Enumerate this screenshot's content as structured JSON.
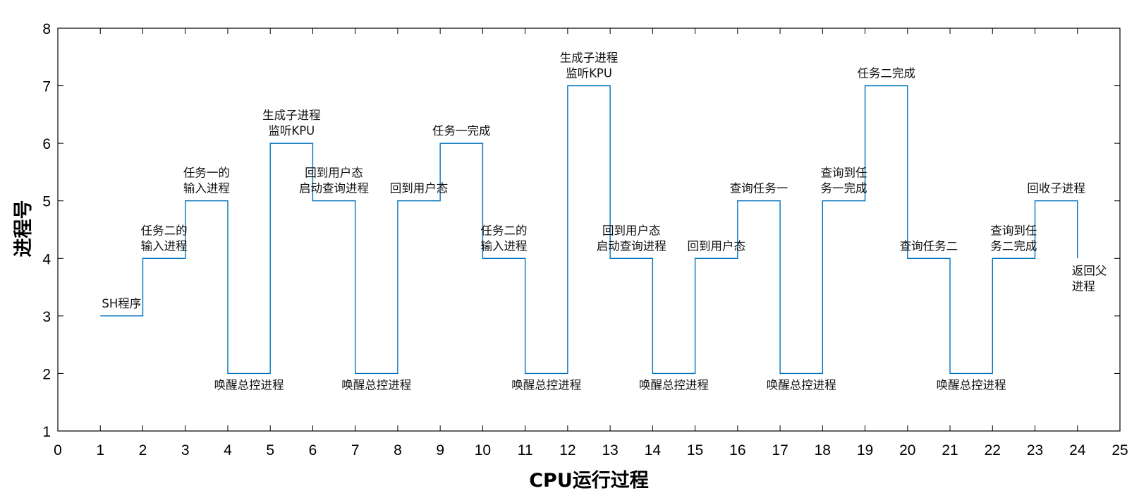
{
  "chart_data": {
    "type": "line",
    "step": true,
    "title": "",
    "xlabel": "CPU运行过程",
    "ylabel": "进程号",
    "xlim": [
      0,
      25
    ],
    "ylim": [
      1,
      8
    ],
    "xticks": [
      "0",
      "1",
      "2",
      "3",
      "4",
      "5",
      "6",
      "7",
      "8",
      "9",
      "10",
      "11",
      "12",
      "13",
      "14",
      "15",
      "16",
      "17",
      "18",
      "19",
      "20",
      "21",
      "22",
      "23",
      "24",
      "25"
    ],
    "yticks": [
      "1",
      "2",
      "3",
      "4",
      "5",
      "6",
      "7",
      "8"
    ],
    "grid": false,
    "line_color": "#0072BD",
    "series": [
      {
        "name": "process",
        "x": [
          1,
          2,
          3,
          4,
          5,
          6,
          7,
          8,
          9,
          10,
          11,
          12,
          13,
          14,
          15,
          16,
          17,
          18,
          19,
          20,
          21,
          22,
          23,
          24
        ],
        "values": [
          3,
          4,
          5,
          2,
          6,
          5,
          2,
          5,
          6,
          4,
          2,
          7,
          4,
          2,
          4,
          5,
          2,
          5,
          7,
          4,
          2,
          4,
          5,
          4
        ]
      }
    ],
    "annotations": [
      {
        "x": 1.5,
        "y": 3,
        "lines": [
          "SH程序"
        ]
      },
      {
        "x": 2.5,
        "y": 4,
        "lines": [
          "任务二的",
          "输入进程"
        ]
      },
      {
        "x": 3.5,
        "y": 5,
        "lines": [
          "任务一的",
          "输入进程"
        ]
      },
      {
        "x": 4.5,
        "y": 2,
        "lines": [
          "唤醒总控进程"
        ]
      },
      {
        "x": 5.5,
        "y": 6,
        "lines": [
          "生成子进程",
          "监听KPU"
        ]
      },
      {
        "x": 6.5,
        "y": 5,
        "lines": [
          "回到用户态",
          "启动查询进程"
        ]
      },
      {
        "x": 7.5,
        "y": 2,
        "lines": [
          "唤醒总控进程"
        ]
      },
      {
        "x": 8.5,
        "y": 5,
        "lines": [
          "回到用户态"
        ]
      },
      {
        "x": 9.5,
        "y": 6,
        "lines": [
          "任务一完成"
        ]
      },
      {
        "x": 10.5,
        "y": 4,
        "lines": [
          "任务二的",
          "输入进程"
        ]
      },
      {
        "x": 11.5,
        "y": 2,
        "lines": [
          "唤醒总控进程"
        ]
      },
      {
        "x": 12.5,
        "y": 7,
        "lines": [
          "生成子进程",
          "监听KPU"
        ]
      },
      {
        "x": 13.5,
        "y": 4,
        "lines": [
          "回到用户态",
          "启动查询进程"
        ]
      },
      {
        "x": 14.5,
        "y": 2,
        "lines": [
          "唤醒总控进程"
        ]
      },
      {
        "x": 15.5,
        "y": 4,
        "lines": [
          "回到用户态"
        ]
      },
      {
        "x": 16.5,
        "y": 5,
        "lines": [
          "查询任务一"
        ]
      },
      {
        "x": 17.5,
        "y": 2,
        "lines": [
          "唤醒总控进程"
        ]
      },
      {
        "x": 18.5,
        "y": 5,
        "lines": [
          "查询到任",
          "务一完成"
        ]
      },
      {
        "x": 19.5,
        "y": 7,
        "lines": [
          "任务二完成"
        ]
      },
      {
        "x": 20.5,
        "y": 4,
        "lines": [
          "查询任务二"
        ]
      },
      {
        "x": 21.5,
        "y": 2,
        "lines": [
          "唤醒总控进程"
        ]
      },
      {
        "x": 22.5,
        "y": 4,
        "lines": [
          "查询到任",
          "务二完成"
        ]
      },
      {
        "x": 23.5,
        "y": 5,
        "lines": [
          "回收子进程"
        ]
      },
      {
        "x": 24,
        "y": 4,
        "lines": [
          "返回父",
          "进程"
        ]
      }
    ]
  }
}
